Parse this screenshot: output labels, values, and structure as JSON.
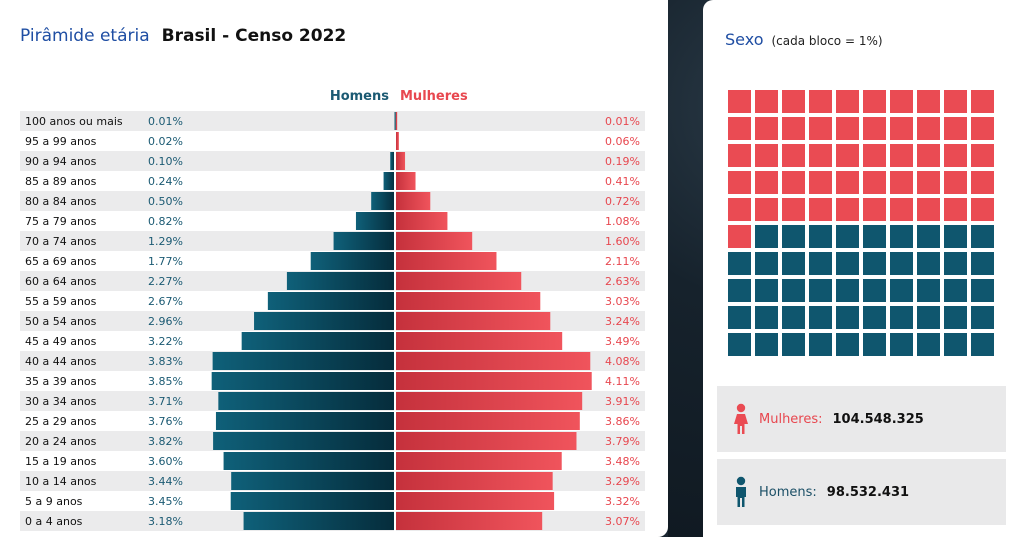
{
  "header": {
    "title": "Pirâmide etária",
    "subtitle": "Brasil - Censo 2022"
  },
  "legend": {
    "men": "Homens",
    "women": "Mulheres"
  },
  "colors": {
    "men": "#0f566e",
    "women": "#ea4b53",
    "title_blue": "#1f4ea3",
    "row_alt": "#ebebec"
  },
  "chart_data": [
    {
      "type": "bar",
      "orientation": "horizontal-butterfly",
      "categories": [
        "100 anos ou mais",
        "95 a 99 anos",
        "90 a 94 anos",
        "85 a 89 anos",
        "80 a 84 anos",
        "75 a 79 anos",
        "70 a 74 anos",
        "65 a 69 anos",
        "60 a 64 anos",
        "55 a 59 anos",
        "50 a 54 anos",
        "45 a 49 anos",
        "40 a 44 anos",
        "35 a 39 anos",
        "30 a 34 anos",
        "25 a 29 anos",
        "20 a 24 anos",
        "15 a 19 anos",
        "10 a 14 anos",
        "5 a 9 anos",
        "0 a 4 anos"
      ],
      "series": [
        {
          "name": "Homens",
          "values": [
            0.01,
            0.02,
            0.1,
            0.24,
            0.5,
            0.82,
            1.29,
            1.77,
            2.27,
            2.67,
            2.96,
            3.22,
            3.83,
            3.85,
            3.71,
            3.76,
            3.82,
            3.6,
            3.44,
            3.45,
            3.18
          ],
          "labels": [
            "0.01%",
            "0.02%",
            "0.10%",
            "0.24%",
            "0.50%",
            "0.82%",
            "1.29%",
            "1.77%",
            "2.27%",
            "2.67%",
            "2.96%",
            "3.22%",
            "3.83%",
            "3.85%",
            "3.71%",
            "3.76%",
            "3.82%",
            "3.60%",
            "3.44%",
            "3.45%",
            "3.18%"
          ]
        },
        {
          "name": "Mulheres",
          "values": [
            0.01,
            0.06,
            0.19,
            0.41,
            0.72,
            1.08,
            1.6,
            2.11,
            2.63,
            3.03,
            3.24,
            3.49,
            4.08,
            4.11,
            3.91,
            3.86,
            3.79,
            3.48,
            3.29,
            3.32,
            3.07
          ],
          "labels": [
            "0.01%",
            "0.06%",
            "0.19%",
            "0.41%",
            "0.72%",
            "1.08%",
            "1.60%",
            "2.11%",
            "2.63%",
            "3.03%",
            "3.24%",
            "3.49%",
            "4.08%",
            "4.11%",
            "3.91%",
            "3.86%",
            "3.79%",
            "3.48%",
            "3.29%",
            "3.32%",
            "3.07%"
          ]
        }
      ],
      "xlim": [
        -4.2,
        4.2
      ],
      "grid": false,
      "legend_position": "top-center"
    },
    {
      "type": "waffle",
      "title": "Sexo",
      "note": "(cada bloco = 1%)",
      "grid_size": [
        10,
        10
      ],
      "series": [
        {
          "name": "Mulheres",
          "value": 51
        },
        {
          "name": "Homens",
          "value": 49
        }
      ]
    }
  ],
  "sexo": {
    "title": "Sexo",
    "note": "(cada bloco = 1%)",
    "women_label": "Mulheres:",
    "women_value": "104.548.325",
    "men_label": "Homens:",
    "men_value": "98.532.431",
    "women_icon": "female-person-icon",
    "men_icon": "male-person-icon"
  }
}
